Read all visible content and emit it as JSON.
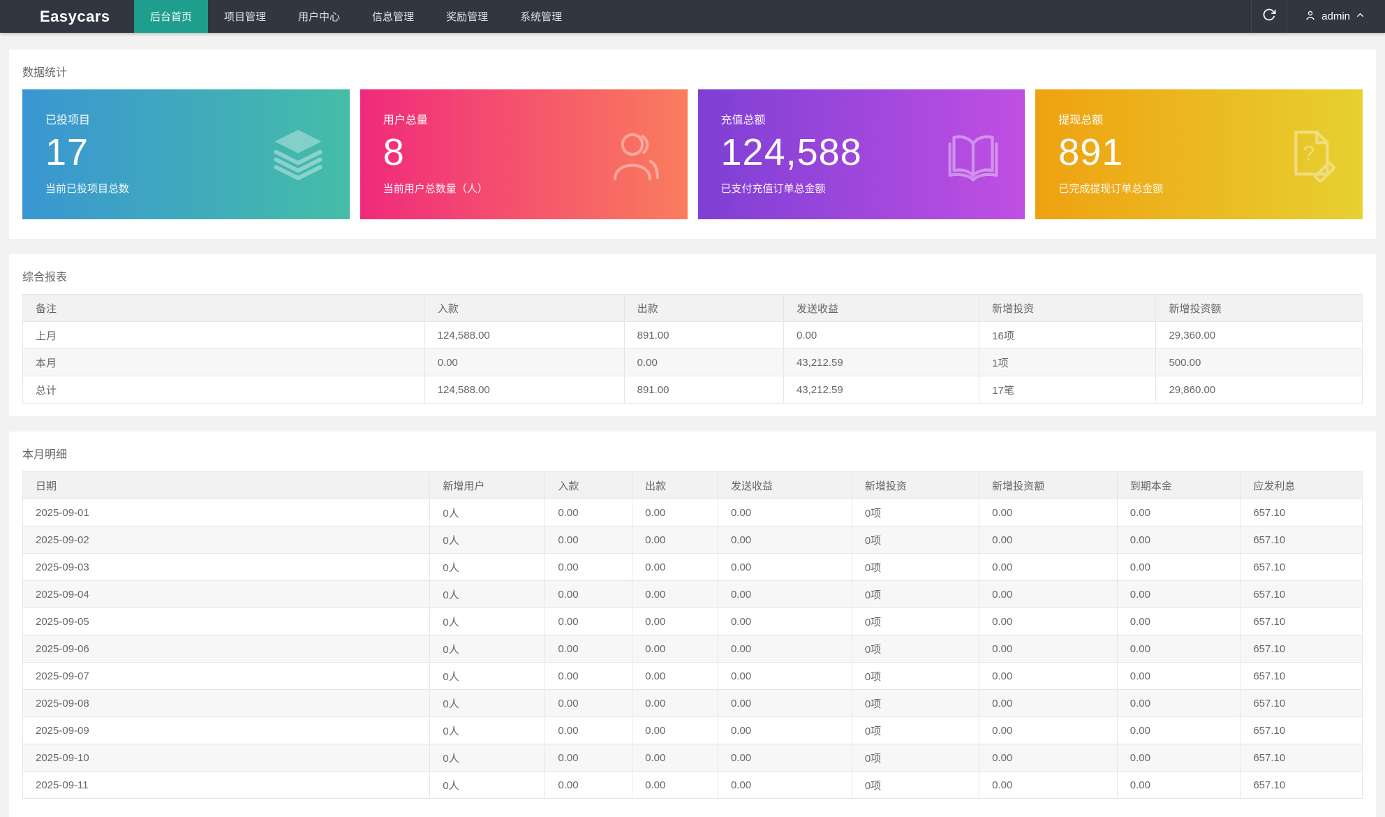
{
  "navbar": {
    "logo": "Easycars",
    "items": [
      {
        "label": "后台首页",
        "active": true
      },
      {
        "label": "项目管理",
        "active": false
      },
      {
        "label": "用户中心",
        "active": false
      },
      {
        "label": "信息管理",
        "active": false
      },
      {
        "label": "奖励管理",
        "active": false
      },
      {
        "label": "系统管理",
        "active": false
      }
    ],
    "username": "admin"
  },
  "stats": {
    "section_title": "数据统计",
    "cards": [
      {
        "title": "已投项目",
        "value": "17",
        "subtitle": "当前已投项目总数",
        "icon": "layers-icon",
        "gradient_from": "#3a96d2",
        "gradient_to": "#45bda7"
      },
      {
        "title": "用户总量",
        "value": "8",
        "subtitle": "当前用户总数量（人）",
        "icon": "users-icon",
        "gradient_from": "#f02a7c",
        "gradient_to": "#fa7d5d"
      },
      {
        "title": "充值总额",
        "value": "124,588",
        "subtitle": "已支付充值订单总金额",
        "icon": "book-icon",
        "gradient_from": "#7e3fd4",
        "gradient_to": "#c04fe3"
      },
      {
        "title": "提现总额",
        "value": "891",
        "subtitle": "已完成提现订单总金额",
        "icon": "document-question-icon",
        "gradient_from": "#efa111",
        "gradient_to": "#e7d031"
      }
    ]
  },
  "summary_report": {
    "section_title": "综合报表",
    "columns": [
      "备注",
      "入款",
      "出款",
      "发送收益",
      "新增投资",
      "新增投资额"
    ],
    "rows": [
      [
        "上月",
        "124,588.00",
        "891.00",
        "0.00",
        "16项",
        "29,360.00"
      ],
      [
        "本月",
        "0.00",
        "0.00",
        "43,212.59",
        "1项",
        "500.00"
      ],
      [
        "总计",
        "124,588.00",
        "891.00",
        "43,212.59",
        "17笔",
        "29,860.00"
      ]
    ]
  },
  "monthly_detail": {
    "section_title": "本月明细",
    "columns": [
      "日期",
      "新增用户",
      "入款",
      "出款",
      "发送收益",
      "新增投资",
      "新增投资额",
      "到期本金",
      "应发利息"
    ],
    "rows": [
      [
        "2025-09-01",
        "0人",
        "0.00",
        "0.00",
        "0.00",
        "0项",
        "0.00",
        "0.00",
        "657.10"
      ],
      [
        "2025-09-02",
        "0人",
        "0.00",
        "0.00",
        "0.00",
        "0项",
        "0.00",
        "0.00",
        "657.10"
      ],
      [
        "2025-09-03",
        "0人",
        "0.00",
        "0.00",
        "0.00",
        "0项",
        "0.00",
        "0.00",
        "657.10"
      ],
      [
        "2025-09-04",
        "0人",
        "0.00",
        "0.00",
        "0.00",
        "0项",
        "0.00",
        "0.00",
        "657.10"
      ],
      [
        "2025-09-05",
        "0人",
        "0.00",
        "0.00",
        "0.00",
        "0项",
        "0.00",
        "0.00",
        "657.10"
      ],
      [
        "2025-09-06",
        "0人",
        "0.00",
        "0.00",
        "0.00",
        "0项",
        "0.00",
        "0.00",
        "657.10"
      ],
      [
        "2025-09-07",
        "0人",
        "0.00",
        "0.00",
        "0.00",
        "0项",
        "0.00",
        "0.00",
        "657.10"
      ],
      [
        "2025-09-08",
        "0人",
        "0.00",
        "0.00",
        "0.00",
        "0项",
        "0.00",
        "0.00",
        "657.10"
      ],
      [
        "2025-09-09",
        "0人",
        "0.00",
        "0.00",
        "0.00",
        "0项",
        "0.00",
        "0.00",
        "657.10"
      ],
      [
        "2025-09-10",
        "0人",
        "0.00",
        "0.00",
        "0.00",
        "0项",
        "0.00",
        "0.00",
        "657.10"
      ],
      [
        "2025-09-11",
        "0人",
        "0.00",
        "0.00",
        "0.00",
        "0项",
        "0.00",
        "0.00",
        "657.10"
      ]
    ]
  }
}
